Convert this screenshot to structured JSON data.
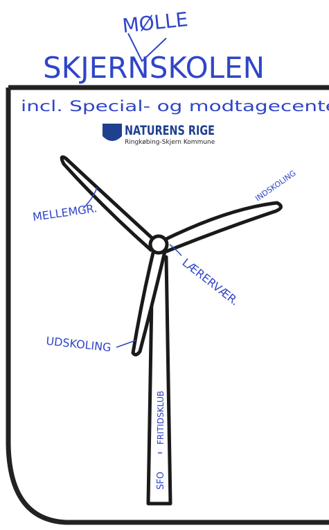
{
  "header": {
    "insert": "MØLLE",
    "title": "SKJERNSKOLEN",
    "subtitle": "incl. Special- og modtagecenter"
  },
  "logo": {
    "name": "NATURENS RIGE",
    "municipality": "Ringkøbing-Skjern Kommune"
  },
  "labels": {
    "upper_left_blade": "MELLEMGR.",
    "right_blade": "INDSKOLING",
    "hub": "LÆRERVÆR.",
    "lower_blade": "UDSKOLING",
    "tower_upper": "FRITIDSKLUB",
    "tower_lower": "SFO"
  }
}
